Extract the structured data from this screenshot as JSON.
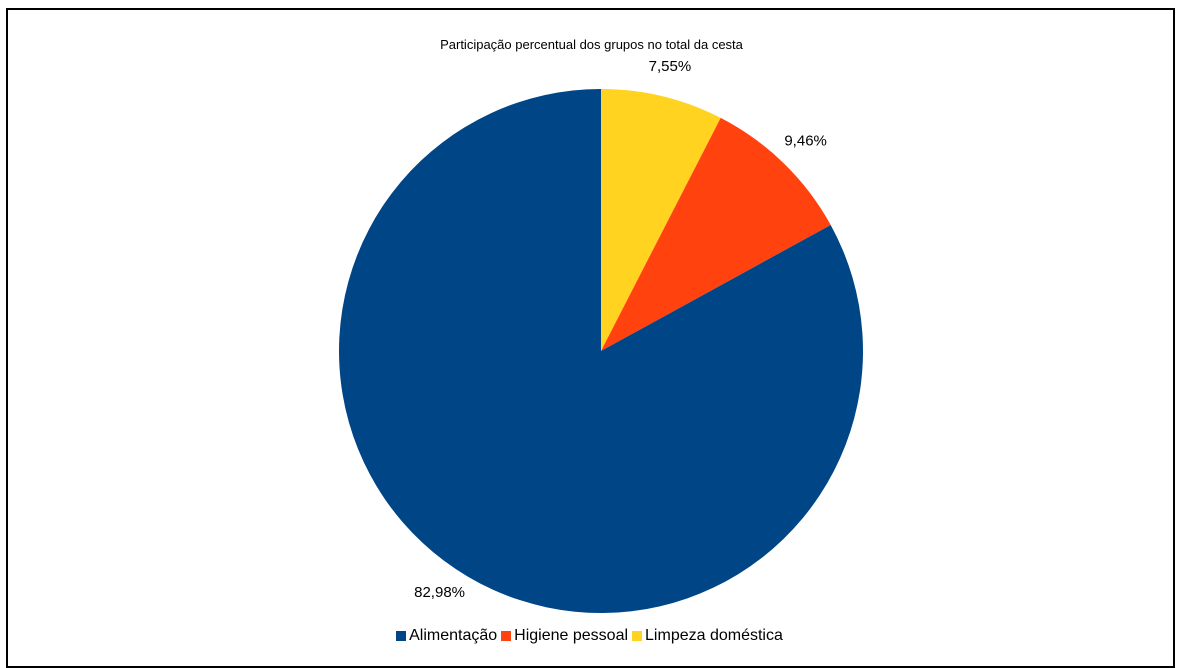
{
  "chart_data": {
    "type": "pie",
    "title": "Participação percentual dos grupos no total da cesta",
    "categories": [
      "Alimentação",
      "Higiene pessoal",
      "Limpeza doméstica"
    ],
    "values": [
      82.98,
      9.46,
      7.55
    ],
    "labels": [
      "82,98%",
      "9,46%",
      "7,55%"
    ],
    "colors": [
      "#004586",
      "#ff420e",
      "#ffd320"
    ],
    "legend_position": "bottom",
    "start_angle": "top, clockwise, last category first"
  }
}
